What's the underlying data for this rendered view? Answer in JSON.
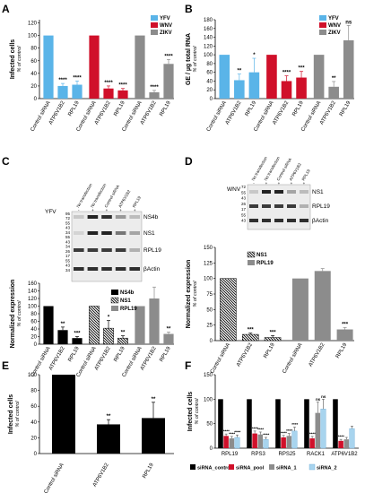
{
  "colors": {
    "yfv": "#5ab4e8",
    "wnv": "#d0102a",
    "zikv": "#8c8c8c",
    "black": "#000000",
    "grey": "#8c8c8c",
    "siRNA_1": "#8c8c8c",
    "siRNA_2": "#a8d4ee",
    "hatch": "#000000"
  },
  "chart_data": [
    {
      "panel": "A",
      "type": "bar",
      "ylabel": "Infected cells",
      "ysub": "% of control",
      "ylim": [
        0,
        125
      ],
      "yticks": [
        0,
        20,
        40,
        60,
        80,
        100,
        120
      ],
      "legend": [
        "YFV",
        "WNV",
        "ZIKV"
      ],
      "categories": [
        "Control siRNA",
        "ATP6V1B2",
        "RPL19",
        "Control siRNA",
        "ATP6V1B2",
        "RPL19",
        "Control siRNA",
        "ATP6V1B2",
        "RPL19"
      ],
      "groups": [
        "yfv",
        "yfv",
        "yfv",
        "wnv",
        "wnv",
        "wnv",
        "zikv",
        "zikv",
        "zikv"
      ],
      "values": [
        100,
        20,
        22,
        100,
        16,
        13,
        100,
        10,
        55
      ],
      "errors": [
        0,
        4,
        6,
        0,
        4,
        3,
        0,
        3,
        7
      ],
      "stars": [
        "",
        "****",
        "****",
        "",
        "****",
        "****",
        "",
        "****",
        "****"
      ]
    },
    {
      "panel": "B",
      "type": "bar",
      "ylabel": "GE / µg total RNA",
      "ysub": "% of control",
      "ylim": [
        0,
        180
      ],
      "yticks": [
        0,
        20,
        40,
        60,
        80,
        100,
        120,
        140,
        160,
        180
      ],
      "legend": [
        "YFV",
        "WNV",
        "ZIKV"
      ],
      "categories": [
        "Control siRNA",
        "ATP6V1B2",
        "RPL19",
        "Control siRNA",
        "ATP6V1B2",
        "RPL19",
        "Control siRNA",
        "ATP6V1B2",
        "RPL19"
      ],
      "groups": [
        "yfv",
        "yfv",
        "yfv",
        "wnv",
        "wnv",
        "wnv",
        "zikv",
        "zikv",
        "zikv"
      ],
      "values": [
        100,
        42,
        60,
        100,
        40,
        48,
        100,
        27,
        133
      ],
      "errors": [
        0,
        14,
        32,
        0,
        12,
        14,
        0,
        12,
        34
      ],
      "stars": [
        "",
        "**",
        "*",
        "",
        "****",
        "***",
        "",
        "**",
        "ns"
      ]
    },
    {
      "panel": "C",
      "type": "bar",
      "ylabel": "Normalized expression",
      "ysub": "% of control",
      "ylim": [
        0,
        160
      ],
      "yticks": [
        0,
        20,
        40,
        60,
        80,
        100,
        120,
        140,
        160
      ],
      "legend": [
        "NS4b",
        "NS1",
        "RPL19"
      ],
      "categories": [
        "Control siRNA",
        "ATP6V1B2",
        "RPL19",
        "Control siRNA",
        "ATP6V1B2",
        "RPL19",
        "Control siRNA",
        "ATP6V1B2",
        "RPL19"
      ],
      "groups": [
        "black",
        "black",
        "black",
        "hatch",
        "hatch",
        "hatch",
        "grey",
        "grey",
        "grey"
      ],
      "values": [
        100,
        37,
        16,
        100,
        42,
        16,
        100,
        120,
        27
      ],
      "errors": [
        0,
        8,
        4,
        0,
        20,
        6,
        0,
        30,
        5
      ],
      "stars": [
        "",
        "**",
        "***",
        "",
        "*",
        "**",
        "",
        "",
        "**"
      ]
    },
    {
      "panel": "D",
      "type": "bar",
      "ylabel": "Normalized expression",
      "ysub": "% of control",
      "ylim": [
        0,
        150
      ],
      "yticks": [
        0,
        25,
        50,
        75,
        100,
        125,
        150
      ],
      "legend": [
        "NS1",
        "RPL19"
      ],
      "categories": [
        "Control siRNA",
        "ATP6V1B2",
        "RPL19",
        "Control siRNA",
        "ATP6V1B2",
        "RPL19"
      ],
      "groups": [
        "hatch",
        "hatch",
        "hatch",
        "grey",
        "grey",
        "grey"
      ],
      "values": [
        100,
        10,
        5,
        100,
        112,
        18
      ],
      "errors": [
        0,
        2,
        3,
        0,
        4,
        3
      ],
      "stars": [
        "",
        "***",
        "***",
        "",
        "",
        "***"
      ]
    },
    {
      "panel": "E",
      "type": "bar",
      "ylabel": "Infected cells",
      "ysub": "% of control",
      "ylim": [
        0,
        100
      ],
      "yticks": [
        0,
        20,
        40,
        60,
        80,
        100
      ],
      "categories": [
        "Control siRNA",
        "ATP6V1B2",
        "RPL19"
      ],
      "groups": [
        "black",
        "black",
        "black"
      ],
      "values": [
        100,
        37,
        45
      ],
      "errors": [
        0,
        6,
        20
      ],
      "stars": [
        "",
        "**",
        "**"
      ]
    },
    {
      "panel": "F",
      "type": "bar",
      "ylabel": "Infected cells",
      "ysub": "% of control",
      "ylim": [
        0,
        150
      ],
      "yticks": [
        0,
        50,
        100,
        150
      ],
      "categories": [
        "RPL19",
        "RPS3",
        "RPS25",
        "RACK1",
        "ATP6V1B2"
      ],
      "legend": [
        "siRNA_control",
        "siRNA_pool",
        "siRNA_1",
        "siRNA_2"
      ],
      "series": [
        {
          "name": "siRNA_control",
          "values": [
            100,
            100,
            100,
            100,
            100
          ],
          "errors": [
            0,
            0,
            0,
            0,
            0
          ]
        },
        {
          "name": "siRNA_pool",
          "values": [
            25,
            30,
            22,
            20,
            15
          ],
          "errors": [
            4,
            5,
            4,
            4,
            3
          ]
        },
        {
          "name": "siRNA_1",
          "values": [
            20,
            28,
            25,
            72,
            18
          ],
          "errors": [
            4,
            5,
            5,
            22,
            4
          ]
        },
        {
          "name": "siRNA_2",
          "values": [
            22,
            18,
            35,
            80,
            40
          ],
          "errors": [
            5,
            4,
            8,
            20,
            5
          ]
        }
      ],
      "stars": [
        [
          "",
          "****",
          "****",
          "****"
        ],
        [
          "",
          "****",
          "****",
          "****"
        ],
        [
          "",
          "****",
          "****",
          "****"
        ],
        [
          "",
          "****",
          "ns",
          "ns"
        ],
        [
          "",
          "****",
          "",
          ""
        ]
      ]
    }
  ],
  "blots": {
    "C": {
      "virus": "YFV",
      "lanes": [
        "No transfection",
        "No transfection",
        "Control siRNA",
        "ATP6V1B2",
        "RPL19"
      ],
      "lane_signs": [
        "-",
        "+"
      ],
      "mw": [
        "95",
        "72",
        "55",
        "43",
        "34",
        "55",
        "43",
        "34",
        "26",
        "17",
        "55",
        "43",
        "34"
      ],
      "bands": [
        "NS4b",
        "NS1",
        "RPL19",
        "βActin"
      ]
    },
    "D": {
      "virus": "WNV",
      "lanes": [
        "No transfection",
        "No transfection",
        "Control siRNA",
        "ATP6V1B2",
        "RPL19"
      ],
      "lane_signs": [
        "-",
        "+"
      ],
      "mw": [
        "72",
        "55",
        "43",
        "26",
        "17",
        "55",
        "43"
      ],
      "bands": [
        "NS1",
        "RPL19",
        "βActin"
      ]
    }
  }
}
